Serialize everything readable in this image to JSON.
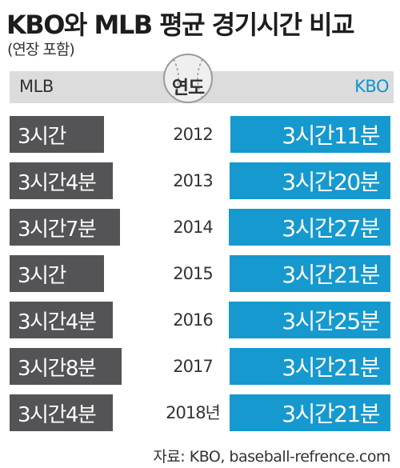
{
  "title": "KBO와 MLB 평균 경기시간 비교",
  "subtitle": "(연장 포함)",
  "header": {
    "left_label": "MLB",
    "center_label": "연도",
    "right_label": "KBO"
  },
  "source": "자료: KBO, baseball-refrence.com",
  "colors": {
    "mlb_bar": "#545457",
    "kbo_bar": "#1599cf",
    "header_band": "#dcdcdc"
  },
  "icons": {
    "header_decoration": "baseball-icon"
  },
  "chart_data": {
    "type": "bar",
    "title": "KBO와 MLB 평균 경기시간 비교",
    "subtitle": "(연장 포함)",
    "categories": [
      "2012",
      "2013",
      "2014",
      "2015",
      "2016",
      "2017",
      "2018년"
    ],
    "series": [
      {
        "name": "MLB",
        "values": [
          180,
          184,
          187,
          180,
          184,
          188,
          184
        ],
        "labels": [
          "3시간",
          "3시간4분",
          "3시간7분",
          "3시간",
          "3시간4분",
          "3시간8분",
          "3시간4분"
        ]
      },
      {
        "name": "KBO",
        "values": [
          191,
          200,
          207,
          201,
          205,
          201,
          201
        ],
        "labels": [
          "3시간11분",
          "3시간20분",
          "3시간27분",
          "3시간21분",
          "3시간25분",
          "3시간21분",
          "3시간21분"
        ]
      }
    ]
  }
}
